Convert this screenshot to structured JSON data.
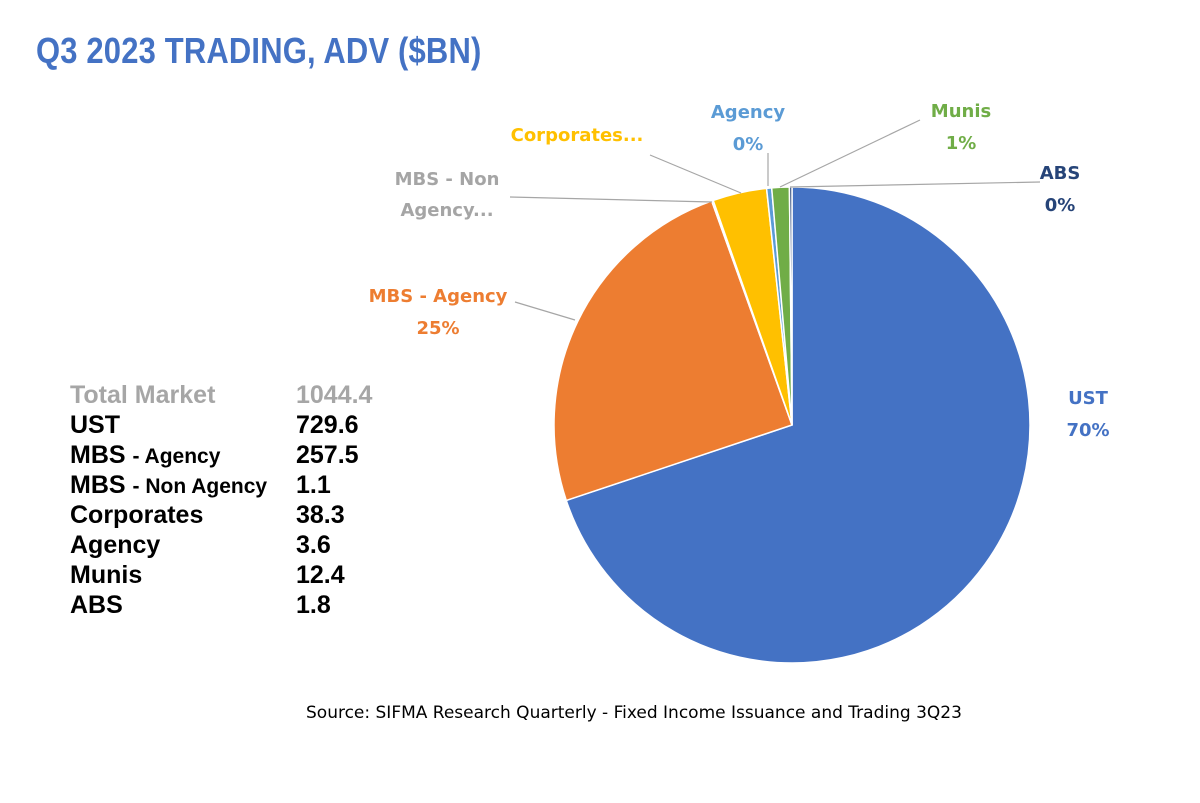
{
  "title": "Q3 2023 TRADING, ADV ($BN)",
  "stats": {
    "total": {
      "name": "Total Market",
      "value": "1044.4"
    },
    "rows": [
      {
        "name_main": "UST",
        "name_sub": "",
        "value": "729.6"
      },
      {
        "name_main": "MBS ",
        "name_sub": "- Agency",
        "value": "257.5"
      },
      {
        "name_main": "MBS ",
        "name_sub": "- Non Agency",
        "value": "1.1"
      },
      {
        "name_main": "Corporates",
        "name_sub": "",
        "value": "38.3"
      },
      {
        "name_main": "Agency",
        "name_sub": "",
        "value": "3.6"
      },
      {
        "name_main": "Munis",
        "name_sub": "",
        "value": "12.4"
      },
      {
        "name_main": "ABS",
        "name_sub": "",
        "value": "1.8"
      }
    ]
  },
  "source": "Source: SIFMA Research Quarterly - Fixed Income Issuance and Trading 3Q23",
  "chart_data": {
    "type": "pie",
    "start_angle_deg": 0,
    "direction": "clockwise",
    "slices": [
      {
        "name": "UST",
        "value": 729.6,
        "color": "#4472C4",
        "label_color": "#4472C4",
        "label_lines": [
          "UST",
          "70%"
        ]
      },
      {
        "name": "MBS - Agency",
        "value": 257.5,
        "color": "#ED7D31",
        "label_color": "#ED7D31",
        "label_lines": [
          "MBS - Agency",
          "25%"
        ]
      },
      {
        "name": "MBS - Non Agency",
        "value": 1.1,
        "color": "#A5A5A5",
        "label_color": "#A5A5A5",
        "label_lines": [
          "MBS - Non",
          "Agency..."
        ]
      },
      {
        "name": "Corporates",
        "value": 38.3,
        "color": "#FFC000",
        "label_color": "#FFC000",
        "label_lines": [
          "Corporates..."
        ]
      },
      {
        "name": "Agency",
        "value": 3.6,
        "color": "#5B9BD5",
        "label_color": "#5B9BD5",
        "label_lines": [
          "Agency",
          "0%"
        ]
      },
      {
        "name": "Munis",
        "value": 12.4,
        "color": "#70AD47",
        "label_color": "#70AD47",
        "label_lines": [
          "Munis",
          "1%"
        ]
      },
      {
        "name": "ABS",
        "value": 1.8,
        "color": "#264478",
        "label_color": "#264478",
        "label_lines": [
          "ABS",
          "0%"
        ]
      }
    ]
  }
}
